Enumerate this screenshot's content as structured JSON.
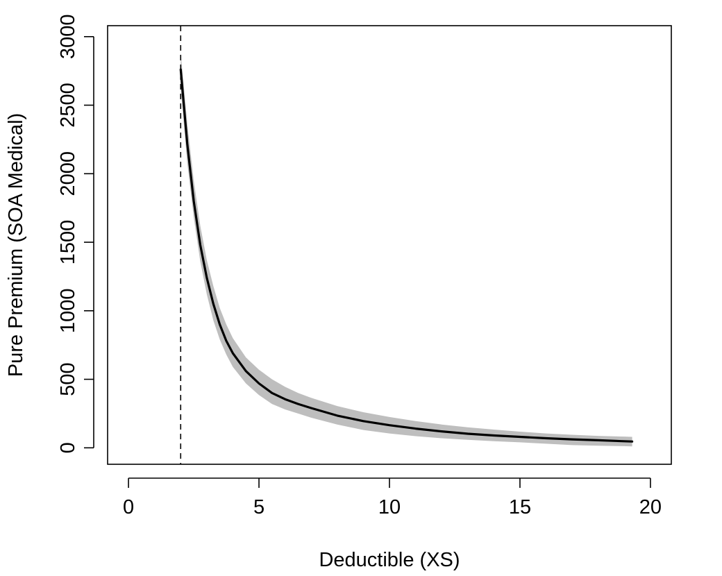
{
  "chart_data": {
    "type": "line",
    "title": "",
    "xlabel": "Deductible (XS)",
    "ylabel": "Pure Premium (SOA Medical)",
    "xlim": [
      -0.8,
      20.8
    ],
    "ylim": [
      -120,
      3080
    ],
    "x_ticks": [
      0,
      5,
      10,
      15,
      20
    ],
    "x_tick_labels": [
      "0",
      "5",
      "10",
      "15",
      "20"
    ],
    "y_ticks": [
      0,
      500,
      1000,
      1500,
      2000,
      2500,
      3000
    ],
    "y_tick_labels": [
      "0",
      "500",
      "1000",
      "1500",
      "2000",
      "2500",
      "3000"
    ],
    "grid": false,
    "legend": "none",
    "reference_line": {
      "x": 2,
      "style": "dashed",
      "color": "#000000"
    },
    "series": [
      {
        "color": "#000000",
        "x": [
          2.0,
          2.25,
          2.5,
          2.75,
          3.0,
          3.25,
          3.5,
          3.75,
          4.0,
          4.5,
          5.0,
          5.5,
          6.0,
          6.5,
          7.0,
          8.0,
          9.0,
          10.0,
          11.0,
          12.0,
          13.0,
          14.0,
          15.0,
          16.0,
          17.0,
          18.0,
          19.0,
          19.3
        ],
        "y": [
          2760,
          2220,
          1800,
          1480,
          1240,
          1050,
          900,
          780,
          690,
          560,
          470,
          400,
          355,
          320,
          290,
          235,
          195,
          165,
          140,
          120,
          103,
          90,
          80,
          70,
          62,
          55,
          48,
          46
        ]
      }
    ],
    "confidence_band": {
      "color": "#bebebe",
      "x": [
        2.0,
        2.25,
        2.5,
        2.75,
        3.0,
        3.25,
        3.5,
        3.75,
        4.0,
        4.5,
        5.0,
        5.5,
        6.0,
        6.5,
        7.0,
        8.0,
        9.0,
        10.0,
        11.0,
        12.0,
        13.0,
        14.0,
        15.0,
        16.0,
        17.0,
        18.0,
        19.0,
        19.3
      ],
      "lower": [
        2620,
        2080,
        1680,
        1360,
        1120,
        930,
        790,
        680,
        590,
        470,
        385,
        320,
        280,
        250,
        220,
        170,
        130,
        105,
        85,
        70,
        58,
        48,
        40,
        30,
        20,
        15,
        12,
        10
      ],
      "upper": [
        2880,
        2370,
        1950,
        1620,
        1370,
        1180,
        1020,
        900,
        800,
        660,
        570,
        500,
        445,
        400,
        365,
        305,
        260,
        225,
        195,
        170,
        150,
        133,
        118,
        105,
        95,
        87,
        82,
        80
      ]
    }
  }
}
